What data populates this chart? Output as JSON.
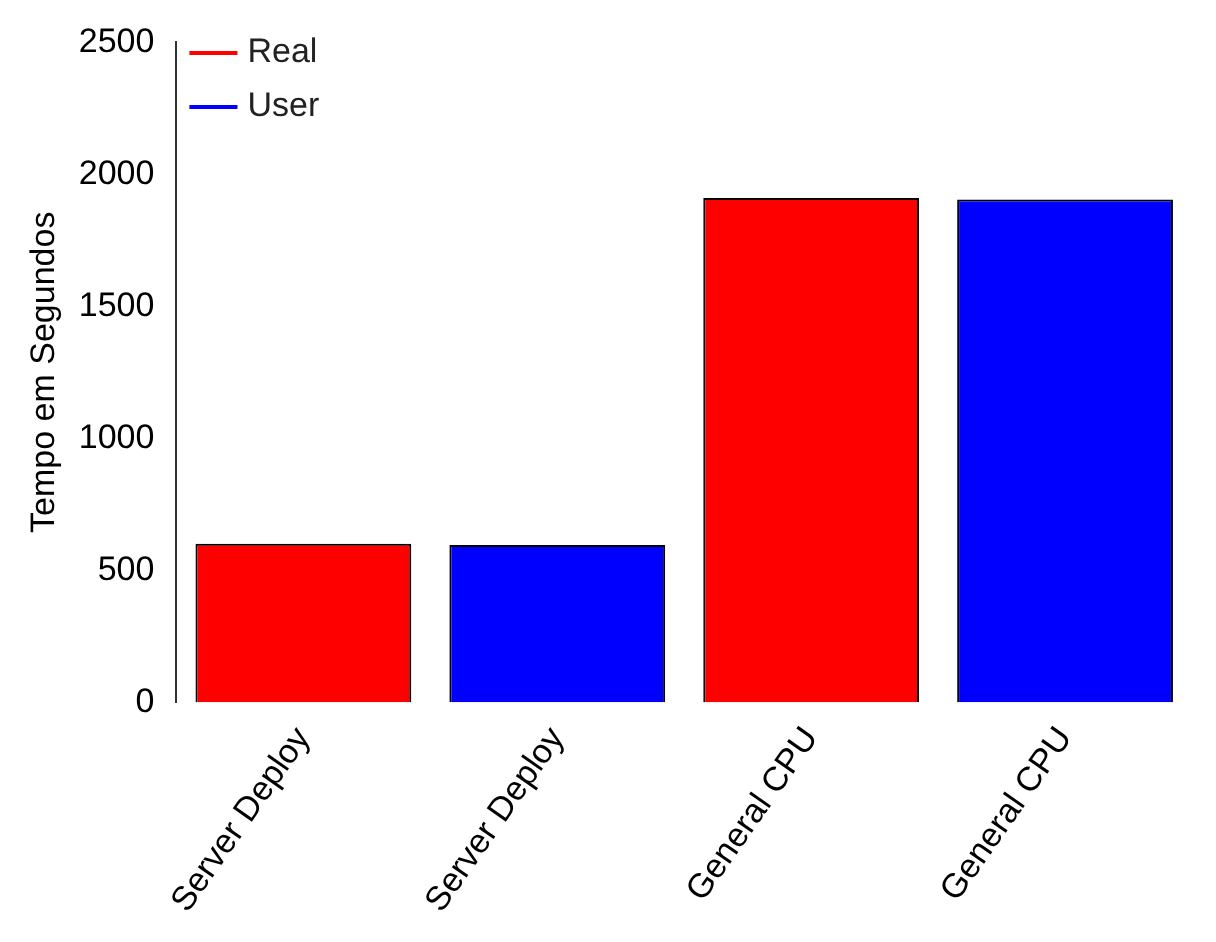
{
  "chart_data": {
    "type": "bar",
    "ylabel": "Tempo em Segundos",
    "categories": [
      "Server Deploy",
      "Server Deploy",
      "General CPU",
      "General CPU"
    ],
    "series": [
      {
        "name": "Real",
        "color": "#ff0000",
        "values": [
          600,
          null,
          1910,
          null
        ]
      },
      {
        "name": "User",
        "color": "#0000ff",
        "values": [
          null,
          595,
          null,
          1905
        ]
      }
    ],
    "ylim": [
      0,
      2500
    ],
    "yticks": [
      0,
      500,
      1000,
      1500,
      2000,
      2500
    ],
    "grid": false,
    "legend": "top left"
  }
}
